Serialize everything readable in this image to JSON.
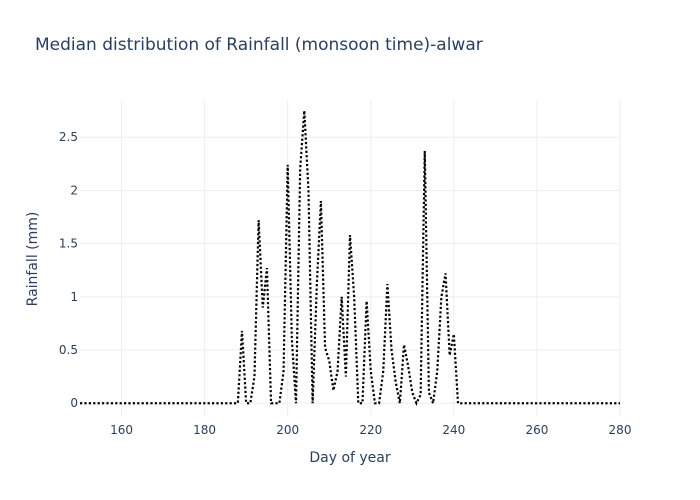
{
  "chart_data": {
    "type": "line",
    "title": "Median distribution of Rainfall (monsoon time)-alwar",
    "xlabel": "Day of year",
    "ylabel": "Rainfall (mm)",
    "xlim": [
      150,
      280
    ],
    "ylim": [
      -0.12,
      2.85
    ],
    "xticks": [
      160,
      180,
      200,
      220,
      240,
      260,
      280
    ],
    "yticks": [
      0,
      0.5,
      1,
      1.5,
      2,
      2.5
    ],
    "ytick_labels": [
      "0",
      "0.5",
      "1",
      "1.5",
      "2",
      "2.5"
    ],
    "grid": true,
    "line_color": "#000000",
    "line_style": "dotted",
    "series": [
      {
        "x": [
          150,
          152,
          154,
          156,
          158,
          160,
          162,
          164,
          166,
          168,
          170,
          172,
          174,
          176,
          178,
          180,
          182,
          184,
          186,
          188,
          189,
          190,
          191,
          192,
          193,
          194,
          195,
          196,
          197,
          198,
          199,
          200,
          201,
          202,
          203,
          204,
          205,
          206,
          207,
          208,
          209,
          210,
          211,
          212,
          213,
          214,
          215,
          216,
          217,
          218,
          219,
          220,
          221,
          222,
          223,
          224,
          225,
          226,
          227,
          228,
          229,
          230,
          231,
          232,
          233,
          234,
          235,
          236,
          237,
          238,
          239,
          240,
          241,
          242,
          244,
          246,
          248,
          250,
          252,
          254,
          256,
          258,
          260,
          262,
          264,
          266,
          268,
          270,
          272,
          274,
          276,
          278,
          280
        ],
        "y": [
          0,
          0,
          0,
          0,
          0,
          0,
          0,
          0,
          0,
          0,
          0,
          0,
          0,
          0,
          0,
          0,
          0,
          0,
          0,
          0,
          0.68,
          0,
          0,
          0.25,
          1.72,
          0.9,
          1.27,
          0,
          0,
          0,
          0.3,
          2.24,
          0.6,
          0,
          2.2,
          2.75,
          2.0,
          0,
          1.1,
          1.9,
          0.52,
          0.4,
          0.12,
          0.3,
          1.0,
          0.25,
          1.58,
          1.0,
          0,
          0,
          0.96,
          0.3,
          0,
          0,
          0.3,
          1.12,
          0.5,
          0.2,
          0,
          0.55,
          0.35,
          0.1,
          0,
          0.08,
          2.37,
          0.1,
          0,
          0.3,
          1.0,
          1.22,
          0.45,
          0.65,
          0,
          0,
          0,
          0,
          0,
          0,
          0,
          0,
          0,
          0,
          0,
          0,
          0,
          0,
          0,
          0,
          0,
          0,
          0,
          0,
          0
        ]
      }
    ]
  }
}
